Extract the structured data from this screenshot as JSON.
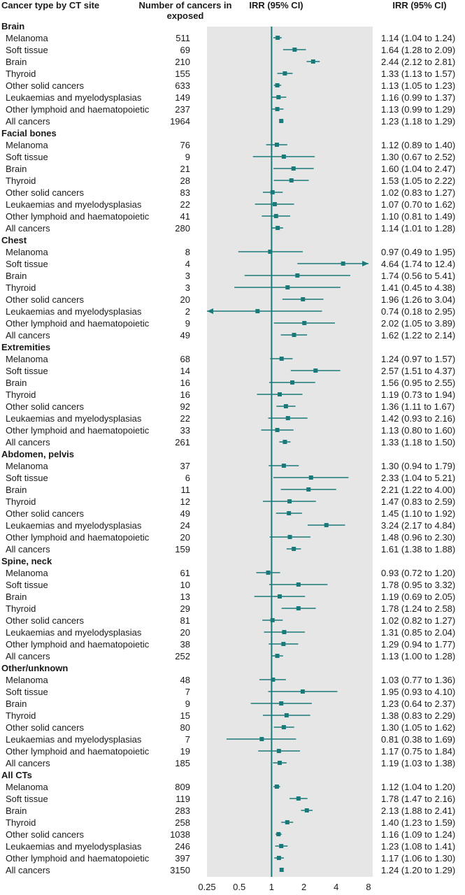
{
  "headers": {
    "cancer_type": "Cancer type by CT site",
    "number": "Number of cancers in exposed",
    "irr_plot": "IRR (95% CI)",
    "irr_text": "IRR (95% CI)"
  },
  "chart_data": {
    "type": "forest",
    "x_scale": "log",
    "xlim": [
      0.25,
      8
    ],
    "reference_line": 1,
    "x_ticks": [
      "0.25",
      "0.5",
      "1",
      "2",
      "4",
      "8"
    ],
    "colors": {
      "marker": "#1a7a7a",
      "panel": "#e6e6e6",
      "reference": "#1a7a7a"
    },
    "groups": [
      {
        "name": "Brain",
        "rows": [
          {
            "label": "Melanoma",
            "n": "511",
            "irr": 1.14,
            "lo": 1.04,
            "hi": 1.24,
            "text": "1.14 (1.04 to 1.24)"
          },
          {
            "label": "Soft tissue",
            "n": "69",
            "irr": 1.64,
            "lo": 1.28,
            "hi": 2.09,
            "text": "1.64 (1.28 to 2.09)"
          },
          {
            "label": "Brain",
            "n": "210",
            "irr": 2.44,
            "lo": 2.12,
            "hi": 2.81,
            "text": "2.44 (2.12 to 2.81)"
          },
          {
            "label": "Thyroid",
            "n": "155",
            "irr": 1.33,
            "lo": 1.13,
            "hi": 1.57,
            "text": "1.33 (1.13 to 1.57)"
          },
          {
            "label": "Other solid cancers",
            "n": "633",
            "irr": 1.13,
            "lo": 1.05,
            "hi": 1.23,
            "text": "1.13 (1.05 to 1.23)"
          },
          {
            "label": "Leukaemias and myelodysplasias",
            "n": "149",
            "irr": 1.16,
            "lo": 0.99,
            "hi": 1.37,
            "text": "1.16 (0.99 to 1.37)"
          },
          {
            "label": "Other lymphoid and haematopoietic",
            "n": "237",
            "irr": 1.13,
            "lo": 0.99,
            "hi": 1.29,
            "text": "1.13 (0.99 to 1.29)"
          },
          {
            "label": "All cancers",
            "n": "1964",
            "irr": 1.23,
            "lo": 1.18,
            "hi": 1.29,
            "text": "1.23 (1.18 to 1.29)"
          }
        ]
      },
      {
        "name": "Facial bones",
        "rows": [
          {
            "label": "Melanoma",
            "n": "76",
            "irr": 1.12,
            "lo": 0.89,
            "hi": 1.4,
            "text": "1.12 (0.89 to 1.40)"
          },
          {
            "label": "Soft tissue",
            "n": "9",
            "irr": 1.3,
            "lo": 0.67,
            "hi": 2.52,
            "text": "1.30 (0.67 to 2.52)"
          },
          {
            "label": "Brain",
            "n": "21",
            "irr": 1.6,
            "lo": 1.04,
            "hi": 2.47,
            "text": "1.60 (1.04 to 2.47)"
          },
          {
            "label": "Thyroid",
            "n": "28",
            "irr": 1.53,
            "lo": 1.05,
            "hi": 2.22,
            "text": "1.53 (1.05 to 2.22)"
          },
          {
            "label": "Other solid cancers",
            "n": "83",
            "irr": 1.02,
            "lo": 0.83,
            "hi": 1.27,
            "text": "1.02 (0.83 to 1.27)"
          },
          {
            "label": "Leukaemias and myelodysplasias",
            "n": "22",
            "irr": 1.07,
            "lo": 0.7,
            "hi": 1.62,
            "text": "1.07 (0.70 to 1.62)"
          },
          {
            "label": "Other lymphoid and haematopoietic",
            "n": "41",
            "irr": 1.1,
            "lo": 0.81,
            "hi": 1.49,
            "text": "1.10 (0.81 to 1.49)"
          },
          {
            "label": "All cancers",
            "n": "280",
            "irr": 1.14,
            "lo": 1.01,
            "hi": 1.28,
            "text": "1.14 (1.01 to 1.28)"
          }
        ]
      },
      {
        "name": "Chest",
        "rows": [
          {
            "label": "Melanoma",
            "n": "8",
            "irr": 0.97,
            "lo": 0.49,
            "hi": 1.95,
            "text": "0.97 (0.49 to 1.95)"
          },
          {
            "label": "Soft tissue",
            "n": "4",
            "irr": 4.64,
            "lo": 1.74,
            "hi": 12.4,
            "text": "4.64 (1.74 to 12.4)"
          },
          {
            "label": "Brain",
            "n": "3",
            "irr": 1.74,
            "lo": 0.56,
            "hi": 5.41,
            "text": "1.74 (0.56 to 5.41)"
          },
          {
            "label": "Thyroid",
            "n": "3",
            "irr": 1.41,
            "lo": 0.45,
            "hi": 4.38,
            "text": "1.41 (0.45 to 4.38)"
          },
          {
            "label": "Other solid cancers",
            "n": "20",
            "irr": 1.96,
            "lo": 1.26,
            "hi": 3.04,
            "text": "1.96 (1.26 to 3.04)"
          },
          {
            "label": "Leukaemias and myelodysplasias",
            "n": "2",
            "irr": 0.74,
            "lo": 0.18,
            "hi": 2.95,
            "text": "0.74 (0.18 to 2.95)"
          },
          {
            "label": "Other lymphoid and haematopoietic",
            "n": "9",
            "irr": 2.02,
            "lo": 1.05,
            "hi": 3.89,
            "text": "2.02 (1.05 to 3.89)"
          },
          {
            "label": "All cancers",
            "n": "49",
            "irr": 1.62,
            "lo": 1.22,
            "hi": 2.14,
            "text": "1.62 (1.22 to 2.14)"
          }
        ]
      },
      {
        "name": "Extremities",
        "rows": [
          {
            "label": "Melanoma",
            "n": "68",
            "irr": 1.24,
            "lo": 0.97,
            "hi": 1.57,
            "text": "1.24 (0.97 to 1.57)"
          },
          {
            "label": "Soft tissue",
            "n": "14",
            "irr": 2.57,
            "lo": 1.51,
            "hi": 4.37,
            "text": "2.57 (1.51 to 4.37)"
          },
          {
            "label": "Brain",
            "n": "16",
            "irr": 1.56,
            "lo": 0.95,
            "hi": 2.55,
            "text": "1.56 (0.95 to 2.55)"
          },
          {
            "label": "Thyroid",
            "n": "16",
            "irr": 1.19,
            "lo": 0.73,
            "hi": 1.94,
            "text": "1.19 (0.73 to 1.94)"
          },
          {
            "label": "Other solid cancers",
            "n": "92",
            "irr": 1.36,
            "lo": 1.11,
            "hi": 1.67,
            "text": "1.36 (1.11 to 1.67)"
          },
          {
            "label": "Leukaemias and myelodysplasias",
            "n": "22",
            "irr": 1.42,
            "lo": 0.93,
            "hi": 2.16,
            "text": "1.42 (0.93 to 2.16)"
          },
          {
            "label": "Other lymphoid and haematopoietic",
            "n": "33",
            "irr": 1.13,
            "lo": 0.8,
            "hi": 1.6,
            "text": "1.13 (0.80 to 1.60)"
          },
          {
            "label": "All cancers",
            "n": "261",
            "irr": 1.33,
            "lo": 1.18,
            "hi": 1.5,
            "text": "1.33 (1.18 to 1.50)"
          }
        ]
      },
      {
        "name": "Abdomen, pelvis",
        "rows": [
          {
            "label": "Melanoma",
            "n": "37",
            "irr": 1.3,
            "lo": 0.94,
            "hi": 1.79,
            "text": "1.30 (0.94 to 1.79)"
          },
          {
            "label": "Soft tissue",
            "n": "6",
            "irr": 2.33,
            "lo": 1.04,
            "hi": 5.21,
            "text": "2.33 (1.04 to 5.21)"
          },
          {
            "label": "Brain",
            "n": "11",
            "irr": 2.21,
            "lo": 1.22,
            "hi": 4.0,
            "text": "2.21 (1.22 to 4.00)"
          },
          {
            "label": "Thyroid",
            "n": "12",
            "irr": 1.47,
            "lo": 0.83,
            "hi": 2.59,
            "text": "1.47 (0.83 to 2.59)"
          },
          {
            "label": "Other solid cancers",
            "n": "49",
            "irr": 1.45,
            "lo": 1.1,
            "hi": 1.92,
            "text": "1.45 (1.10 to 1.92)"
          },
          {
            "label": "Leukaemias and myelodysplasias",
            "n": "24",
            "irr": 3.24,
            "lo": 2.17,
            "hi": 4.84,
            "text": "3.24 (2.17 to 4.84)"
          },
          {
            "label": "Other lymphoid and haematopoietic",
            "n": "20",
            "irr": 1.48,
            "lo": 0.96,
            "hi": 2.3,
            "text": "1.48 (0.96 to 2.30)"
          },
          {
            "label": "All cancers",
            "n": "159",
            "irr": 1.61,
            "lo": 1.38,
            "hi": 1.88,
            "text": "1.61 (1.38 to 1.88)"
          }
        ]
      },
      {
        "name": "Spine, neck",
        "rows": [
          {
            "label": "Melanoma",
            "n": "61",
            "irr": 0.93,
            "lo": 0.72,
            "hi": 1.2,
            "text": "0.93 (0.72 to 1.20)"
          },
          {
            "label": "Soft tissue",
            "n": "10",
            "irr": 1.78,
            "lo": 0.95,
            "hi": 3.32,
            "text": "1.78 (0.95 to 3.32)"
          },
          {
            "label": "Brain",
            "n": "13",
            "irr": 1.19,
            "lo": 0.69,
            "hi": 2.05,
            "text": "1.19 (0.69 to 2.05)"
          },
          {
            "label": "Thyroid",
            "n": "29",
            "irr": 1.78,
            "lo": 1.24,
            "hi": 2.58,
            "text": "1.78 (1.24 to 2.58)"
          },
          {
            "label": "Other solid cancers",
            "n": "81",
            "irr": 1.02,
            "lo": 0.82,
            "hi": 1.27,
            "text": "1.02 (0.82 to 1.27)"
          },
          {
            "label": "Leukaemias and myelodysplasias",
            "n": "20",
            "irr": 1.31,
            "lo": 0.85,
            "hi": 2.04,
            "text": "1.31 (0.85 to 2.04)"
          },
          {
            "label": "Other lymphoid and haematopoietic",
            "n": "38",
            "irr": 1.29,
            "lo": 0.94,
            "hi": 1.77,
            "text": "1.29 (0.94 to 1.77)"
          },
          {
            "label": "All cancers",
            "n": "252",
            "irr": 1.13,
            "lo": 1.0,
            "hi": 1.28,
            "text": "1.13 (1.00 to 1.28)"
          }
        ]
      },
      {
        "name": "Other/unknown",
        "rows": [
          {
            "label": "Melanoma",
            "n": "48",
            "irr": 1.03,
            "lo": 0.77,
            "hi": 1.36,
            "text": "1.03 (0.77 to 1.36)"
          },
          {
            "label": "Soft tissue",
            "n": "7",
            "irr": 1.95,
            "lo": 0.93,
            "hi": 4.1,
            "text": "1.95 (0.93 to 4.10)"
          },
          {
            "label": "Brain",
            "n": "9",
            "irr": 1.23,
            "lo": 0.64,
            "hi": 2.37,
            "text": "1.23 (0.64 to 2.37)"
          },
          {
            "label": "Thyroid",
            "n": "15",
            "irr": 1.38,
            "lo": 0.83,
            "hi": 2.29,
            "text": "1.38 (0.83 to 2.29)"
          },
          {
            "label": "Other solid cancers",
            "n": "80",
            "irr": 1.3,
            "lo": 1.05,
            "hi": 1.62,
            "text": "1.30 (1.05 to 1.62)"
          },
          {
            "label": "Leukaemias and myelodysplasias",
            "n": "7",
            "irr": 0.81,
            "lo": 0.38,
            "hi": 1.69,
            "text": "0.81 (0.38 to 1.69)"
          },
          {
            "label": "Other lymphoid and haematopoietic",
            "n": "19",
            "irr": 1.17,
            "lo": 0.75,
            "hi": 1.84,
            "text": "1.17 (0.75 to 1.84)"
          },
          {
            "label": "All cancers",
            "n": "185",
            "irr": 1.19,
            "lo": 1.03,
            "hi": 1.38,
            "text": "1.19 (1.03 to 1.38)"
          }
        ]
      },
      {
        "name": "All CTs",
        "rows": [
          {
            "label": "Melanoma",
            "n": "809",
            "irr": 1.12,
            "lo": 1.04,
            "hi": 1.2,
            "text": "1.12 (1.04 to 1.20)"
          },
          {
            "label": "Soft tissue",
            "n": "119",
            "irr": 1.78,
            "lo": 1.47,
            "hi": 2.16,
            "text": "1.78 (1.47 to 2.16)"
          },
          {
            "label": "Brain",
            "n": "283",
            "irr": 2.13,
            "lo": 1.88,
            "hi": 2.41,
            "text": "2.13 (1.88 to 2.41)"
          },
          {
            "label": "Thyroid",
            "n": "258",
            "irr": 1.4,
            "lo": 1.23,
            "hi": 1.59,
            "text": "1.40 (1.23 to 1.59)"
          },
          {
            "label": "Other solid cancers",
            "n": "1038",
            "irr": 1.16,
            "lo": 1.09,
            "hi": 1.24,
            "text": "1.16 (1.09 to 1.24)"
          },
          {
            "label": "Leukaemias and myelodysplasias",
            "n": "246",
            "irr": 1.23,
            "lo": 1.08,
            "hi": 1.41,
            "text": "1.23 (1.08 to 1.41)"
          },
          {
            "label": "Other lymphoid and haematopoietic",
            "n": "397",
            "irr": 1.17,
            "lo": 1.06,
            "hi": 1.3,
            "text": "1.17 (1.06 to 1.30)"
          },
          {
            "label": "All cancers",
            "n": "3150",
            "irr": 1.24,
            "lo": 1.2,
            "hi": 1.29,
            "text": "1.24 (1.20 to 1.29)"
          }
        ]
      }
    ]
  }
}
